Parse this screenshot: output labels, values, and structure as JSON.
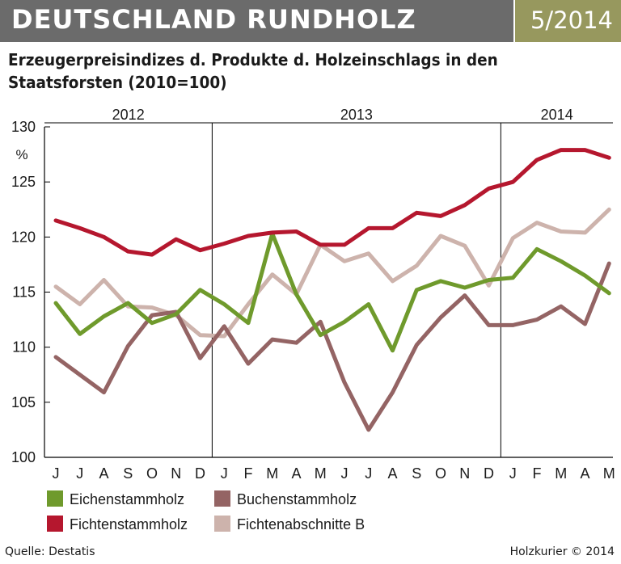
{
  "header": {
    "title": "DEUTSCHLAND RUNDHOLZ",
    "issue": "5/2014"
  },
  "subtitle": "Erzeugerpreisindizes d. Produkte d. Holzeinschlags in den Staatsforsten (2010=100)",
  "footer": {
    "source": "Quelle: Destatis",
    "credit": "Holzkurier © 2014"
  },
  "colors": {
    "header_bg": "#6b6b6b",
    "issue_bg": "#97985e",
    "eichen": "#6f9a2c",
    "buchen": "#946464",
    "fichte": "#b5172e",
    "fichtenabschnitte": "#cdb3ac"
  },
  "chart_data": {
    "type": "line",
    "title": "Erzeugerpreisindizes d. Produkte d. Holzeinschlags in den Staatsforsten (2010=100)",
    "ylabel": "%",
    "xlabel": "",
    "ylim": [
      100,
      130
    ],
    "yticks": [
      100,
      105,
      110,
      115,
      120,
      125,
      130
    ],
    "years": [
      {
        "label": "2012",
        "start": 0,
        "end": 6
      },
      {
        "label": "2013",
        "start": 7,
        "end": 18
      },
      {
        "label": "2014",
        "start": 19,
        "end": 23
      }
    ],
    "categories": [
      "J",
      "J",
      "A",
      "S",
      "O",
      "N",
      "D",
      "J",
      "F",
      "M",
      "A",
      "M",
      "J",
      "J",
      "A",
      "S",
      "O",
      "N",
      "D",
      "J",
      "F",
      "M",
      "A",
      "M"
    ],
    "series": [
      {
        "name": "Fichtenabschnitte B",
        "color": "#cdb3ac",
        "values": [
          115.5,
          113.9,
          116.1,
          113.7,
          113.6,
          112.9,
          111.1,
          111.0,
          113.9,
          116.6,
          114.8,
          119.3,
          117.8,
          118.5,
          116.0,
          117.4,
          120.1,
          119.2,
          115.6,
          119.9,
          121.3,
          120.5,
          120.4,
          122.5
        ]
      },
      {
        "name": "Buchenstammholz",
        "color": "#946464",
        "values": [
          109.1,
          107.5,
          105.9,
          110.1,
          112.9,
          113.2,
          109.0,
          111.9,
          108.5,
          110.7,
          110.4,
          112.3,
          106.8,
          102.5,
          105.9,
          110.2,
          112.7,
          114.7,
          112.0,
          112.0,
          112.5,
          113.7,
          112.1,
          117.6
        ]
      },
      {
        "name": "Eichenstammholz",
        "color": "#6f9a2c",
        "values": [
          114.0,
          111.2,
          112.8,
          114.0,
          112.2,
          113.0,
          115.2,
          113.9,
          112.2,
          120.3,
          114.8,
          111.1,
          112.3,
          113.9,
          109.7,
          115.2,
          116.0,
          115.4,
          116.1,
          116.3,
          118.9,
          117.8,
          116.5,
          114.9
        ]
      },
      {
        "name": "Fichtenstammholz",
        "color": "#b5172e",
        "values": [
          121.5,
          120.8,
          120.0,
          118.7,
          118.4,
          119.8,
          118.8,
          119.4,
          120.1,
          120.4,
          120.5,
          119.3,
          119.3,
          120.8,
          120.8,
          122.2,
          121.9,
          122.9,
          124.4,
          125.0,
          127.0,
          127.9,
          127.9,
          127.2
        ]
      }
    ],
    "legend": {
      "placement": "bottom",
      "order": [
        "Eichenstammholz",
        "Buchenstammholz",
        "Fichtenstammholz",
        "Fichtenabschnitte B"
      ]
    },
    "grid": false
  }
}
